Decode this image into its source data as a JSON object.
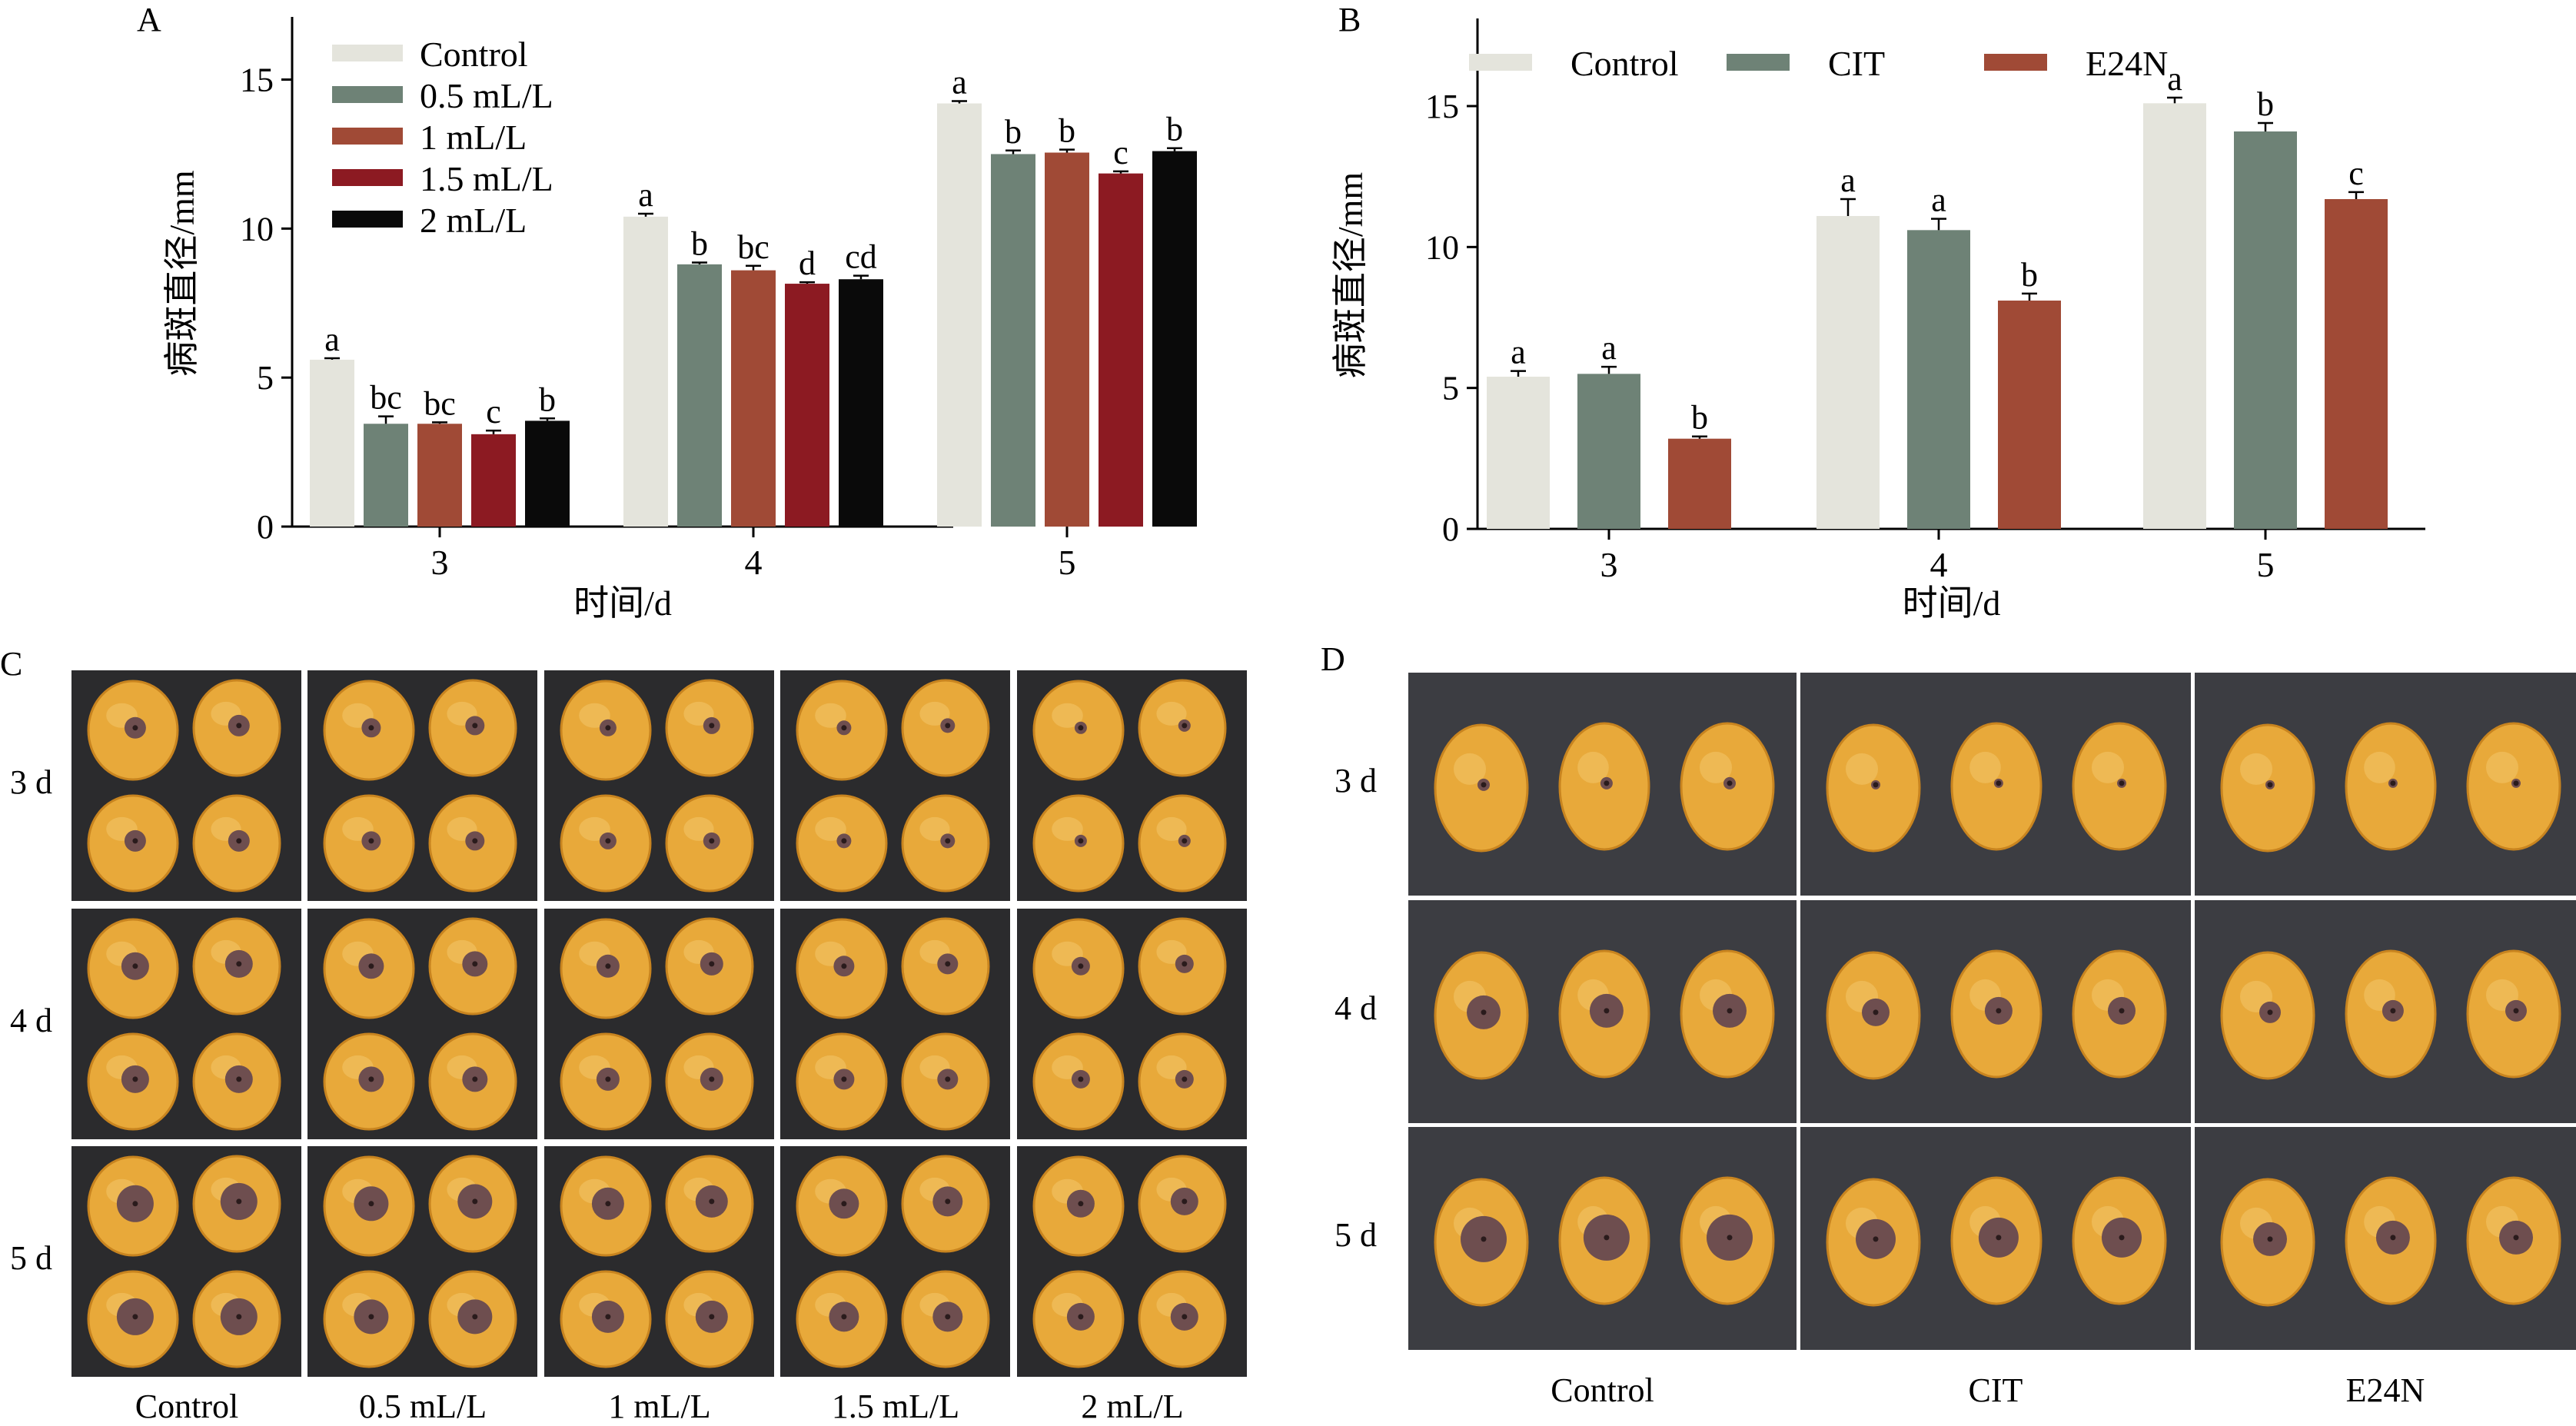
{
  "panels": {
    "a": "A",
    "b": "B",
    "c": "C",
    "d": "D"
  },
  "chart_data": [
    {
      "type": "bar",
      "panel": "A",
      "title": "",
      "xlabel": "时间/d",
      "ylabel": "病斑直径/mm",
      "ylim": [
        0,
        17
      ],
      "yticks": [
        0,
        5,
        10,
        15
      ],
      "categories": [
        "3",
        "4",
        "5"
      ],
      "legend_position": "top-left",
      "series": [
        {
          "name": "Control",
          "color": "#e4e4dc",
          "values": [
            5.6,
            10.4,
            14.2
          ],
          "errors": [
            0.05,
            0.1,
            0.08
          ],
          "letters": [
            "a",
            "a",
            "a"
          ]
        },
        {
          "name": "0.5 mL/L",
          "color": "#6e8276",
          "values": [
            3.45,
            8.8,
            12.5
          ],
          "errors": [
            0.25,
            0.06,
            0.12
          ],
          "letters": [
            "bc",
            "b",
            "b"
          ]
        },
        {
          "name": "1 mL/L",
          "color": "#a04a36",
          "values": [
            3.45,
            8.6,
            12.55
          ],
          "errors": [
            0.05,
            0.15,
            0.1
          ],
          "letters": [
            "bc",
            "bc",
            "b"
          ]
        },
        {
          "name": "1.5 mL/L",
          "color": "#8c1a22",
          "values": [
            3.1,
            8.15,
            11.85
          ],
          "errors": [
            0.12,
            0.05,
            0.07
          ],
          "letters": [
            "c",
            "d",
            "c"
          ]
        },
        {
          "name": "2 mL/L",
          "color": "#0a0a0a",
          "values": [
            3.55,
            8.3,
            12.6
          ],
          "errors": [
            0.08,
            0.12,
            0.1
          ],
          "letters": [
            "b",
            "cd",
            "b"
          ]
        }
      ]
    },
    {
      "type": "bar",
      "panel": "B",
      "title": "",
      "xlabel": "时间/d",
      "ylabel": "病斑直径/mm",
      "ylim": [
        0,
        18
      ],
      "yticks": [
        0,
        5,
        10,
        15
      ],
      "categories": [
        "3",
        "4",
        "5"
      ],
      "legend_position": "top",
      "series": [
        {
          "name": "Control",
          "color": "#e4e4dc",
          "values": [
            5.4,
            11.1,
            15.1
          ],
          "errors": [
            0.2,
            0.6,
            0.2
          ],
          "letters": [
            "a",
            "a",
            "a"
          ]
        },
        {
          "name": "CIT",
          "color": "#6e8276",
          "values": [
            5.5,
            10.6,
            14.1
          ],
          "errors": [
            0.25,
            0.4,
            0.3
          ],
          "letters": [
            "a",
            "a",
            "b"
          ]
        },
        {
          "name": "E24N",
          "color": "#a04a36",
          "values": [
            3.2,
            8.1,
            11.7
          ],
          "errors": [
            0.08,
            0.25,
            0.25
          ],
          "letters": [
            "b",
            "b",
            "c"
          ]
        }
      ]
    }
  ],
  "photos_c": {
    "rows": [
      "3 d",
      "4 d",
      "5 d"
    ],
    "cols": [
      "Control",
      "0.5 mL/L",
      "1 mL/L",
      "1.5 mL/L",
      "2 mL/L"
    ],
    "fruit_color": "#e8a93a",
    "background": "#2b2b2d"
  },
  "photos_d": {
    "rows": [
      "3 d",
      "4 d",
      "5 d"
    ],
    "cols": [
      "Control",
      "CIT",
      "E24N"
    ],
    "fruit_color": "#e8a93a",
    "background": "#3c3d42"
  }
}
